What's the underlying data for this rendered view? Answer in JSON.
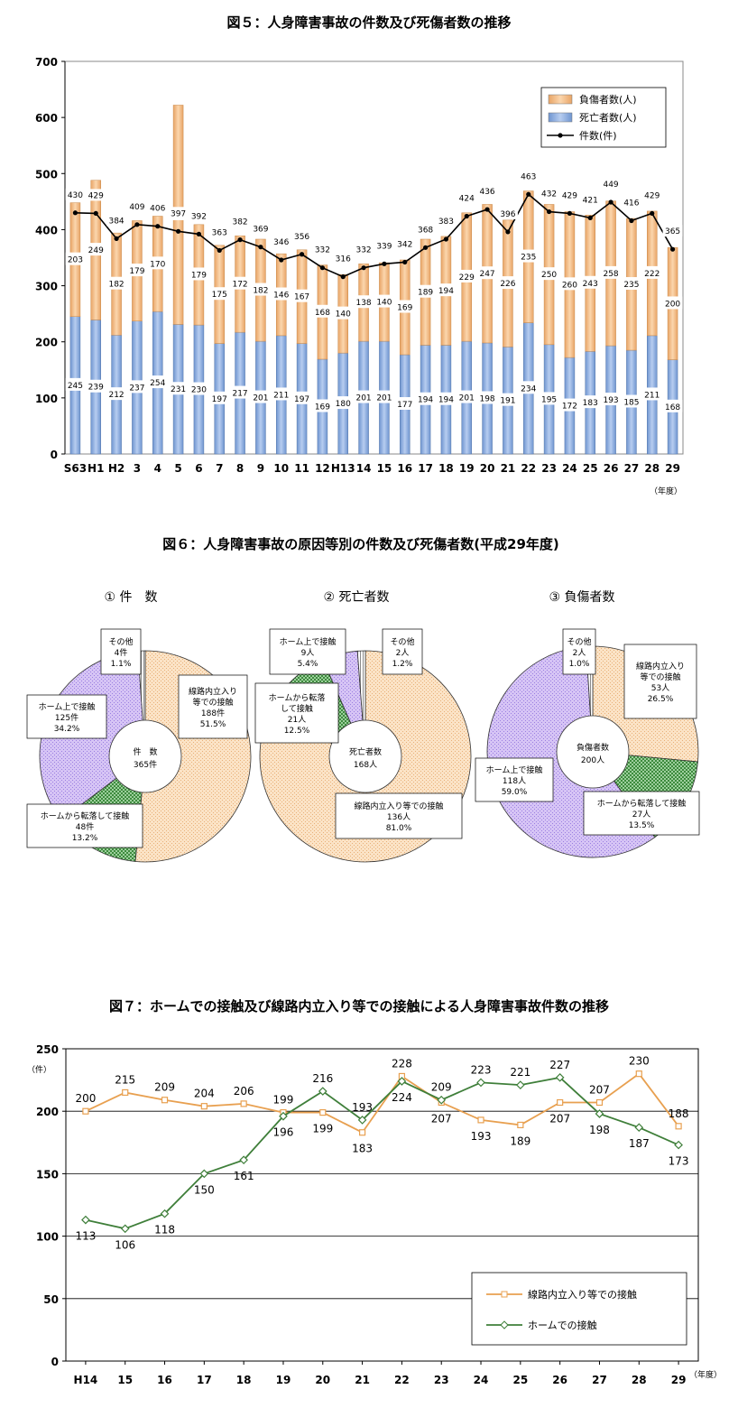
{
  "chart_data": [
    {
      "type": "bar",
      "title": "図５：人身障害事故の件数及び死傷者数の推移",
      "unit_note": "（年度）",
      "categories": [
        "S63",
        "H1",
        "H2",
        "3",
        "4",
        "5",
        "6",
        "7",
        "8",
        "9",
        "10",
        "11",
        "12",
        "H13",
        "14",
        "15",
        "16",
        "17",
        "18",
        "19",
        "20",
        "21",
        "22",
        "23",
        "24",
        "25",
        "26",
        "27",
        "28",
        "29"
      ],
      "ylim": [
        0,
        700
      ],
      "yticks": [
        "0",
        "100",
        "200",
        "300",
        "400",
        "500",
        "600",
        "700"
      ],
      "stacked": true,
      "legend_position": "top-right",
      "series": [
        {
          "name": "死亡者数(人)",
          "kind": "bar",
          "color": "#8eb4e3",
          "values": [
            245,
            239,
            212,
            237,
            254,
            231,
            230,
            197,
            217,
            201,
            211,
            197,
            169,
            180,
            201,
            201,
            177,
            194,
            194,
            201,
            198,
            191,
            234,
            195,
            172,
            183,
            193,
            185,
            211,
            168
          ]
        },
        {
          "name": "負傷者数(人)",
          "kind": "bar",
          "color": "#f5c48c",
          "values": [
            203,
            249,
            182,
            179,
            170,
            391,
            179,
            175,
            172,
            182,
            146,
            167,
            168,
            140,
            138,
            140,
            169,
            189,
            194,
            229,
            247,
            226,
            235,
            250,
            260,
            243,
            258,
            235,
            222,
            200
          ]
        },
        {
          "name": "件数(件)",
          "kind": "line",
          "color": "#000000",
          "values": [
            430,
            429,
            384,
            409,
            406,
            397,
            392,
            363,
            382,
            369,
            346,
            356,
            332,
            316,
            332,
            339,
            342,
            368,
            383,
            424,
            436,
            396,
            463,
            432,
            429,
            421,
            449,
            416,
            429,
            365
          ]
        }
      ]
    },
    {
      "type": "pie",
      "title": "図６：人身障害事故の原因等別の件数及び死傷者数(平成29年度)",
      "charts": [
        {
          "subtitle": "① 件　数",
          "center": [
            "件　数",
            "365件"
          ],
          "slices": [
            {
              "lines": [
                "線路内立入り",
                "等での接触",
                "188件",
                "51.5%"
              ],
              "value": 51.5,
              "pattern": "beige"
            },
            {
              "lines": [
                "ホームから転落して接触",
                "48件",
                "13.2%"
              ],
              "value": 13.2,
              "pattern": "green"
            },
            {
              "lines": [
                "ホーム上で接触",
                "125件",
                "34.2%"
              ],
              "value": 34.2,
              "pattern": "purple"
            },
            {
              "lines": [
                "その他",
                "4件",
                "1.1%"
              ],
              "value": 1.1,
              "pattern": "gray"
            }
          ]
        },
        {
          "subtitle": "② 死亡者数",
          "center": [
            "死亡者数",
            "168人"
          ],
          "slices": [
            {
              "lines": [
                "線路内立入り等での接触",
                "136人",
                "81.0%"
              ],
              "value": 81.0,
              "pattern": "beige"
            },
            {
              "lines": [
                "ホームから転落",
                "して接触",
                "21人",
                "12.5%"
              ],
              "value": 12.5,
              "pattern": "green"
            },
            {
              "lines": [
                "ホーム上で接触",
                "9人",
                "5.4%"
              ],
              "value": 5.4,
              "pattern": "purple"
            },
            {
              "lines": [
                "その他",
                "2人",
                "1.2%"
              ],
              "value": 1.2,
              "pattern": "gray"
            }
          ]
        },
        {
          "subtitle": "③ 負傷者数",
          "center": [
            "負傷者数",
            "200人"
          ],
          "slices": [
            {
              "lines": [
                "線路内立入り",
                "等での接触",
                "53人",
                "26.5%"
              ],
              "value": 26.5,
              "pattern": "beige"
            },
            {
              "lines": [
                "ホームから転落して接触",
                "27人",
                "13.5%"
              ],
              "value": 13.5,
              "pattern": "green"
            },
            {
              "lines": [
                "ホーム上で接触",
                "118人",
                "59.0%"
              ],
              "value": 59.0,
              "pattern": "purple"
            },
            {
              "lines": [
                "その他",
                "2人",
                "1.0%"
              ],
              "value": 1.0,
              "pattern": "gray"
            }
          ]
        }
      ]
    },
    {
      "type": "line",
      "title": "図７：ホームでの接触及び線路内立入り等での接触による人身障害事故件数の推移",
      "ylabel": "（件）",
      "unit_note": "（年度）",
      "categories": [
        "H14",
        "15",
        "16",
        "17",
        "18",
        "19",
        "20",
        "21",
        "22",
        "23",
        "24",
        "25",
        "26",
        "27",
        "28",
        "29"
      ],
      "ylim": [
        0,
        250
      ],
      "yticks": [
        "0",
        "50",
        "100",
        "150",
        "200",
        "250"
      ],
      "grid": true,
      "legend_position": "bottom-right",
      "series": [
        {
          "name": "線路内立入り等での接触",
          "color": "#e8a050",
          "marker": "square",
          "values": [
            200,
            215,
            209,
            204,
            206,
            199,
            199,
            183,
            228,
            207,
            193,
            189,
            207,
            207,
            230,
            188
          ]
        },
        {
          "name": "ホームでの接触",
          "color": "#3f7f3a",
          "marker": "diamond",
          "values": [
            113,
            106,
            118,
            150,
            161,
            196,
            216,
            193,
            224,
            209,
            223,
            221,
            227,
            198,
            187,
            173
          ]
        }
      ]
    }
  ]
}
